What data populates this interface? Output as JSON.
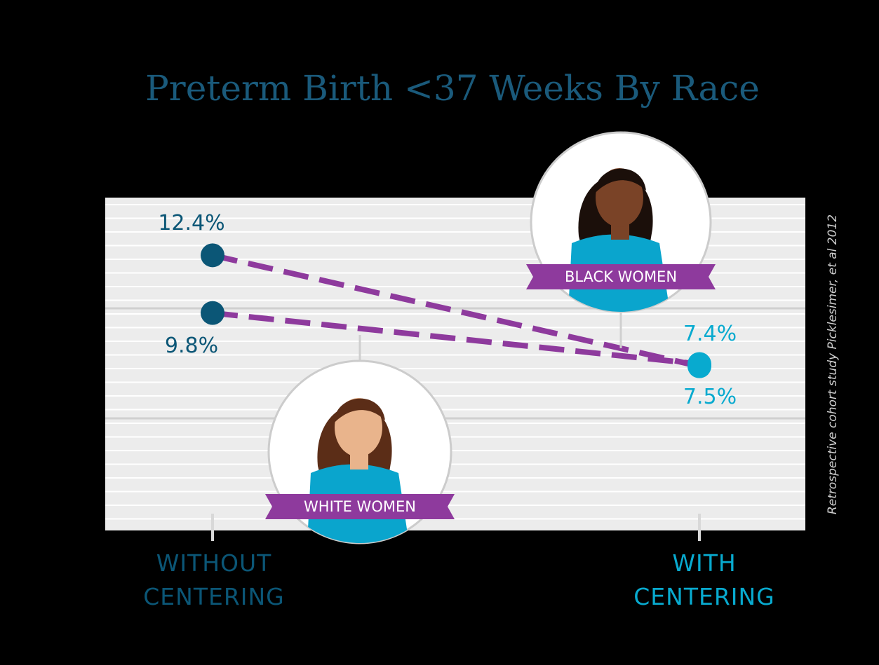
{
  "chart_data": {
    "type": "line",
    "title": "Preterm Birth <37 Weeks By Race",
    "categories": [
      "WITHOUT CENTERING",
      "WITH CENTERING"
    ],
    "category_colors": [
      "#0b5676",
      "#08aacf"
    ],
    "series": [
      {
        "name": "BLACK WOMEN",
        "color": "#8e3a9d",
        "values": [
          12.4,
          7.4
        ],
        "value_labels": [
          "12.4%",
          "7.4%"
        ]
      },
      {
        "name": "WHITE WOMEN",
        "color": "#8e3a9d",
        "values": [
          9.8,
          7.5
        ],
        "value_labels": [
          "9.8%",
          "7.5%"
        ]
      }
    ],
    "ylim": [
      0,
      15
    ],
    "source": "Retrospective cohort study Picklesimer, et al 2012"
  }
}
